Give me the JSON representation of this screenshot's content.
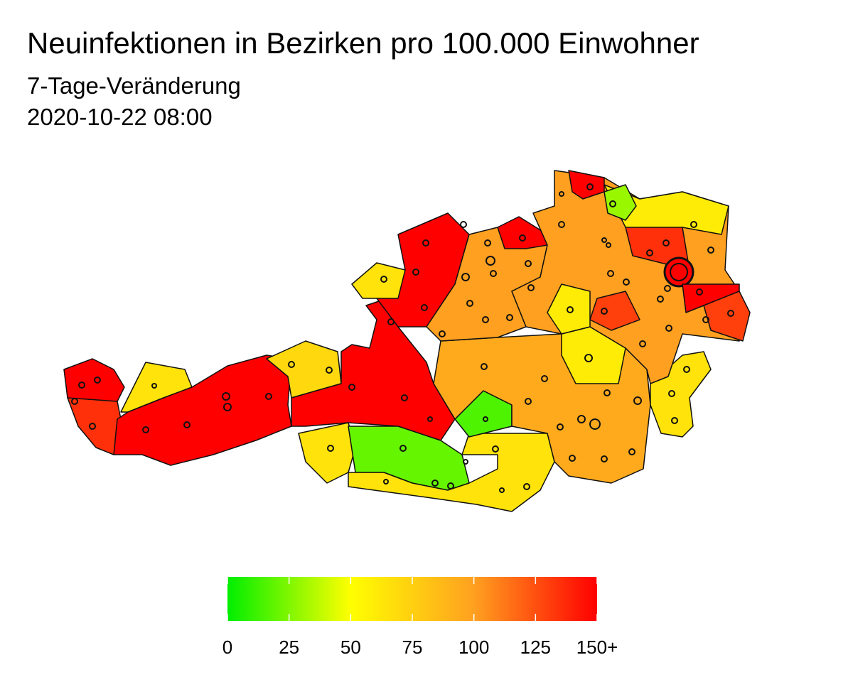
{
  "title": "Neuinfektionen in Bezirken pro 100.000 Einwohner",
  "subtitle": "7-Tage-Veränderung",
  "timestamp": "2020-10-22 08:00",
  "map": {
    "values": [
      150,
      135,
      65,
      150,
      70,
      150,
      65,
      20,
      65,
      15,
      95,
      60,
      65,
      150,
      100,
      150,
      65,
      100,
      60,
      30,
      150,
      135,
      150,
      150,
      130,
      130,
      60
    ]
  },
  "legend": {
    "lim": [
      0,
      150
    ],
    "ticks": [
      0,
      25,
      50,
      75,
      100,
      125,
      {
        "value": 150,
        "label": "150+"
      }
    ],
    "colors": [
      "#00ee00",
      "#ffff00",
      "#ffa020",
      "#ff0000"
    ]
  }
}
